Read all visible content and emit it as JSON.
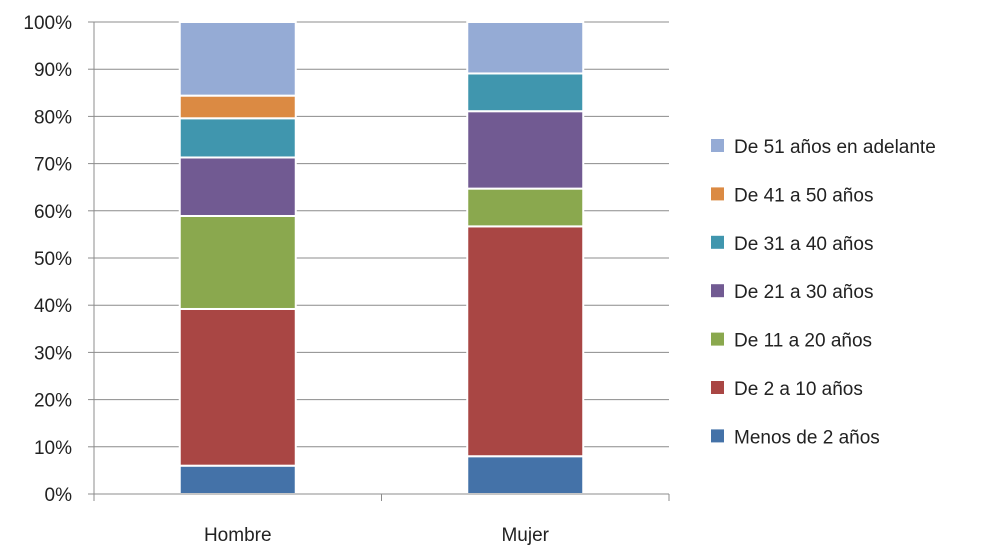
{
  "chart_data": {
    "type": "bar",
    "stacked": true,
    "percent_stacked": true,
    "categories": [
      "Hombre",
      "Mujer"
    ],
    "y_tick_labels": [
      "0%",
      "10%",
      "20%",
      "30%",
      "40%",
      "50%",
      "60%",
      "70%",
      "80%",
      "90%",
      "100%"
    ],
    "ylim": [
      0,
      100
    ],
    "grid": true,
    "legend_position": "right",
    "series": [
      {
        "name": "Menos de 2 años",
        "color": "#4472A8",
        "values": [
          6,
          8
        ]
      },
      {
        "name": "De 2 a 10 años",
        "color": "#A94644",
        "values": [
          33.2,
          48.7
        ]
      },
      {
        "name": "De 11 a 20 años",
        "color": "#8AA84E",
        "values": [
          19.7,
          8
        ]
      },
      {
        "name": "De 21 a 30 años",
        "color": "#715A92",
        "values": [
          12.4,
          16.4
        ]
      },
      {
        "name": "De 31 a 40 años",
        "color": "#4096AE",
        "values": [
          8.3,
          8
        ]
      },
      {
        "name": "De 41 a 50 años",
        "color": "#DB8A43",
        "values": [
          4.8,
          0
        ]
      },
      {
        "name": "De 51 años en adelante",
        "color": "#95ABD5",
        "values": [
          15.6,
          10.9
        ]
      }
    ]
  }
}
